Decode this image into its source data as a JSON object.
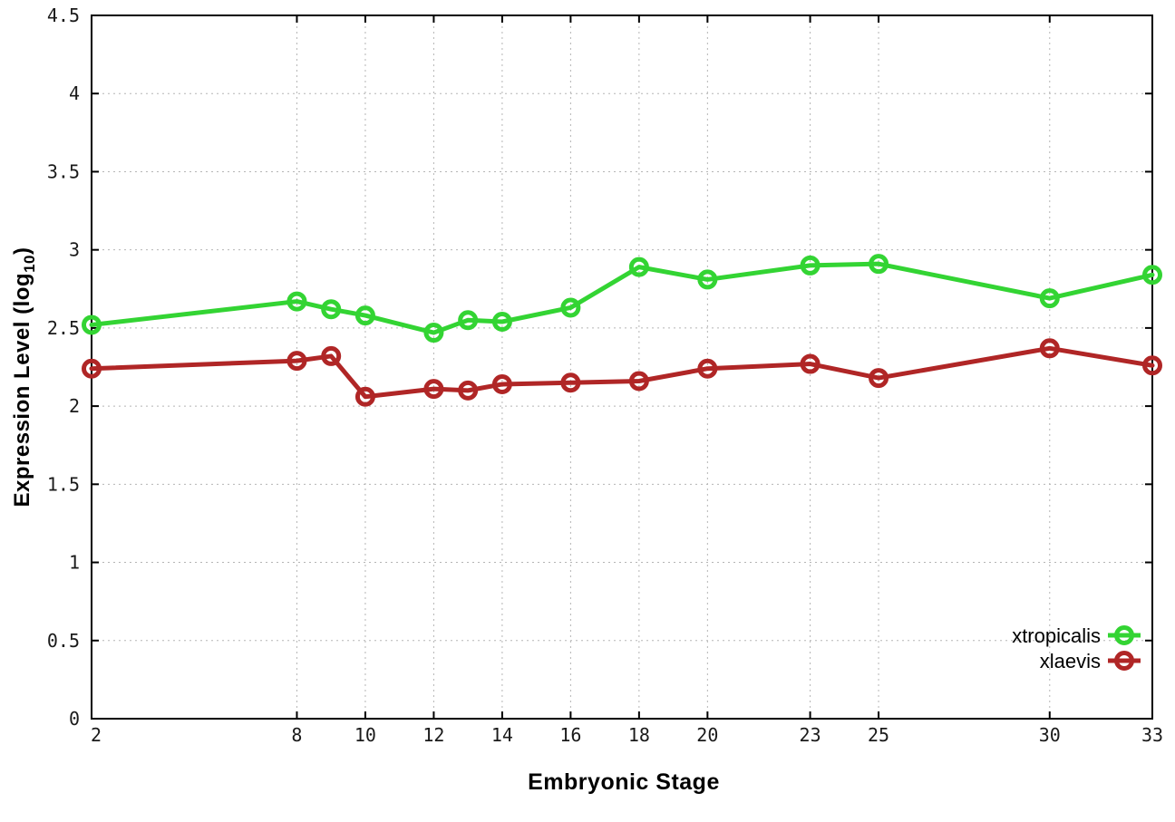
{
  "chart_data": {
    "type": "line",
    "title": "",
    "xlabel": "Embryonic Stage",
    "ylabel": "Expression Level (log10)",
    "ylabel_parts": {
      "pre": "Expression Level (log",
      "sub": "10",
      "post": ")"
    },
    "xlim": [
      2,
      33
    ],
    "ylim": [
      0,
      4.5
    ],
    "x_ticks": [
      2,
      8,
      10,
      12,
      14,
      16,
      18,
      20,
      23,
      25,
      30,
      33
    ],
    "y_ticks": [
      0,
      0.5,
      1,
      1.5,
      2,
      2.5,
      3,
      3.5,
      4,
      4.5
    ],
    "grid": true,
    "legend_position": "inside-bottom-right",
    "x": [
      2,
      8,
      9,
      10,
      12,
      13,
      14,
      16,
      18,
      20,
      23,
      25,
      30,
      33
    ],
    "series": [
      {
        "name": "xtropicalis",
        "color": "#33D433",
        "marker": "open-circle",
        "values": [
          2.52,
          2.67,
          2.62,
          2.58,
          2.47,
          2.55,
          2.54,
          2.63,
          2.89,
          2.81,
          2.9,
          2.91,
          2.69,
          2.84
        ]
      },
      {
        "name": "xlaevis",
        "color": "#B02626",
        "marker": "open-circle",
        "values": [
          2.24,
          2.29,
          2.32,
          2.06,
          2.11,
          2.1,
          2.14,
          2.15,
          2.16,
          2.24,
          2.27,
          2.18,
          2.37,
          2.26
        ]
      }
    ],
    "axis_color": "#000000",
    "grid_color": "#b5b5b5",
    "tick_label_color": "#1a1a1a",
    "background": "#ffffff"
  }
}
